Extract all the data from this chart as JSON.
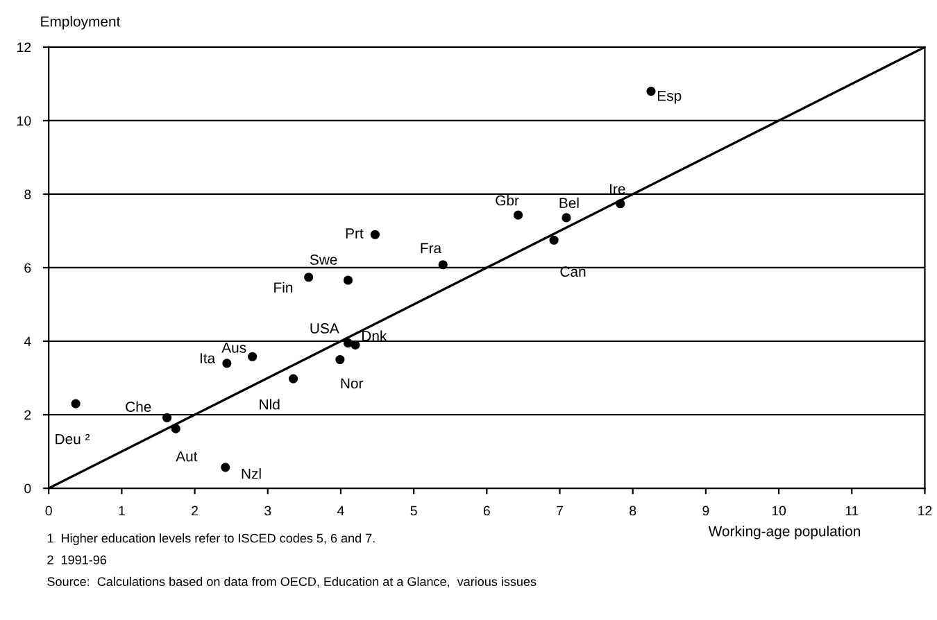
{
  "chart_data": {
    "type": "scatter",
    "xlabel": "Working-age population",
    "ylabel": "Employment",
    "xlim": [
      0,
      12
    ],
    "xticks": [
      0,
      1,
      2,
      3,
      4,
      5,
      6,
      7,
      8,
      9,
      10,
      11,
      12
    ],
    "ylim": [
      0,
      12
    ],
    "yticks": [
      0,
      2,
      4,
      6,
      8,
      10,
      12
    ],
    "grid": "y",
    "legend": false,
    "marker": "circle",
    "series": [
      {
        "color": "#000000",
        "x": [
          8.25,
          6.43,
          7.09,
          6.92,
          7.83,
          4.47,
          5.4,
          3.56,
          4.1,
          4.1,
          4.2,
          3.99,
          3.35,
          2.79,
          2.44,
          1.62,
          1.74,
          0.37,
          2.42
        ],
        "values": [
          10.8,
          7.43,
          7.36,
          6.75,
          7.74,
          6.9,
          6.08,
          5.74,
          5.66,
          3.95,
          3.9,
          3.5,
          2.98,
          3.58,
          3.4,
          1.92,
          1.62,
          2.3,
          0.57
        ],
        "value_labels": [
          "Esp",
          "Gbr",
          "Bel",
          "Can",
          "Ire",
          "Prt",
          "Fra",
          "Fin",
          "Swe",
          "USA",
          "Dnk",
          "Nor",
          "Nld",
          "Aus",
          "Ita",
          "Che",
          "Aut",
          "Deu ²",
          "Nzl"
        ]
      },
      {
        "type": "line",
        "color": "#000000",
        "marker": "none",
        "line_style": "solid",
        "x": [
          0,
          12
        ],
        "values": [
          0,
          12
        ]
      }
    ],
    "annotations": [
      "1  Higher education levels refer to ISCED codes 5, 6 and 7.",
      "2  1991-96",
      "Source:  Calculations based on data from OECD, Education at a Glance,  various issues"
    ]
  }
}
